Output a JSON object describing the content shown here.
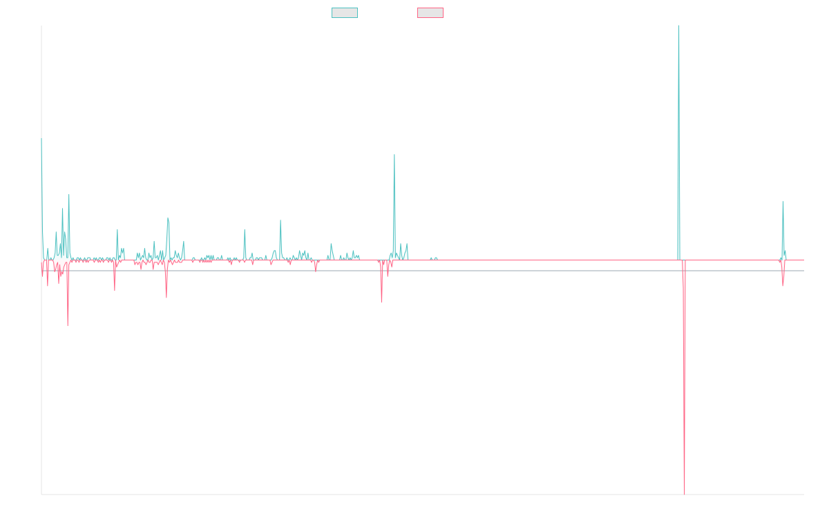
{
  "chart_data": {
    "type": "area",
    "title": "",
    "xlabel": "",
    "ylabel": "",
    "ylim": [
      -100,
      100
    ],
    "grid": false,
    "legend_position": "top-center",
    "series": [
      {
        "color": "#4bc0c0",
        "baseline": 0,
        "values": [
          52,
          12,
          1,
          0,
          0,
          0,
          5,
          0,
          0,
          1,
          0,
          0,
          1,
          3,
          12,
          2,
          2,
          3,
          7,
          1,
          22,
          2,
          12,
          9,
          1,
          1,
          28,
          3,
          1,
          0,
          1,
          0,
          0,
          0,
          1,
          1,
          0,
          1,
          0,
          0,
          0,
          1,
          0,
          0,
          1,
          1,
          1,
          0,
          0,
          0,
          1,
          0,
          1,
          0,
          0,
          1,
          1,
          0,
          1,
          0,
          0,
          0,
          1,
          1,
          0,
          1,
          0,
          0,
          1,
          1,
          0,
          0,
          13,
          0,
          2,
          1,
          5,
          3,
          5,
          0,
          0,
          0,
          0,
          0,
          0,
          0,
          0,
          0,
          0,
          0,
          0,
          3,
          1,
          3,
          0,
          1,
          2,
          1,
          5,
          1,
          0,
          0,
          3,
          1,
          2,
          0,
          1,
          8,
          1,
          1,
          2,
          0,
          2,
          4,
          0,
          4,
          0,
          1,
          2,
          9,
          18,
          16,
          0,
          1,
          0,
          1,
          1,
          4,
          2,
          1,
          3,
          1,
          0,
          1,
          4,
          8,
          0,
          0,
          0,
          0,
          0,
          0,
          0,
          0,
          1,
          1,
          0,
          0,
          0,
          0,
          0,
          0,
          1,
          0,
          0,
          1,
          0,
          2,
          1,
          2,
          0,
          2,
          0,
          2,
          0,
          0,
          0,
          1,
          1,
          0,
          0,
          2,
          0,
          0,
          0,
          0,
          0,
          1,
          0,
          1,
          0,
          0,
          0,
          1,
          0,
          1,
          0,
          0,
          0,
          0,
          0,
          0,
          1,
          13,
          1,
          0,
          0,
          0,
          1,
          1,
          3,
          0,
          0,
          0,
          1,
          1,
          0,
          1,
          1,
          1,
          0,
          0,
          0,
          2,
          0,
          0,
          0,
          0,
          0,
          1,
          3,
          4,
          4,
          1,
          0,
          0,
          0,
          17,
          3,
          1,
          1,
          0,
          0,
          1,
          0,
          0,
          1,
          0,
          0,
          2,
          1,
          0,
          1,
          0,
          1,
          4,
          2,
          0,
          3,
          2,
          4,
          1,
          0,
          3,
          0,
          0,
          1,
          0,
          0,
          0,
          0,
          0,
          0,
          0,
          0,
          0,
          0,
          0,
          0,
          0,
          0,
          0,
          2,
          0,
          0,
          7,
          4,
          2,
          0,
          0,
          0,
          0,
          0,
          0,
          2,
          0,
          0,
          1,
          0,
          0,
          3,
          1,
          0,
          1,
          0,
          1,
          4,
          1,
          1,
          2,
          1,
          2,
          0,
          0,
          0,
          0,
          0,
          0,
          0,
          0,
          0,
          0,
          0,
          0,
          0,
          0,
          0,
          0,
          0,
          0,
          0,
          0,
          0,
          0,
          0,
          0,
          0,
          0,
          0,
          0,
          0,
          2,
          3,
          1,
          4,
          45,
          1,
          3,
          2,
          1,
          0,
          7,
          2,
          0,
          1,
          3,
          4,
          7,
          0,
          0,
          0,
          0,
          0,
          0,
          0,
          0,
          0,
          0,
          0,
          0,
          0,
          0,
          0,
          0,
          0,
          0,
          0,
          0,
          0,
          0,
          1,
          0,
          0,
          0,
          1,
          1,
          0,
          0,
          0,
          0,
          0,
          0,
          0,
          0,
          0,
          0,
          0,
          0,
          0,
          0,
          0,
          0,
          0,
          0,
          0,
          0,
          0,
          0,
          0,
          0,
          0,
          0,
          0,
          0,
          0,
          0,
          0,
          0,
          0,
          0,
          0,
          0,
          0,
          0,
          0,
          0,
          0,
          0,
          0,
          0,
          0,
          0,
          0,
          0,
          0,
          0,
          0,
          0,
          0,
          0,
          0,
          0,
          0,
          0,
          0,
          0,
          0,
          0,
          0,
          0,
          0,
          0,
          0,
          0,
          0,
          0,
          0,
          0,
          0,
          0,
          0,
          0,
          0,
          0,
          0,
          0,
          0,
          0,
          0,
          0,
          0,
          0,
          0,
          0,
          0,
          0,
          0,
          0,
          0,
          0,
          0,
          0,
          0,
          0,
          0,
          0,
          0,
          0,
          0,
          0,
          0,
          0,
          0,
          0,
          0,
          0,
          0,
          0,
          0,
          0,
          0,
          0,
          0,
          0,
          0,
          0,
          0,
          0,
          0,
          0,
          0,
          0,
          0,
          0,
          0,
          0,
          0,
          0,
          0,
          0,
          0,
          0,
          0,
          0,
          0,
          0,
          0,
          0,
          0,
          0,
          0,
          0,
          0,
          0,
          0,
          0,
          0,
          0,
          0,
          0,
          0,
          0,
          0,
          0,
          0,
          0,
          0,
          0,
          0,
          0,
          0,
          0,
          0,
          0,
          0,
          0,
          0,
          0,
          0,
          0,
          0,
          0,
          0,
          0,
          0,
          0,
          0,
          0,
          0,
          0,
          0,
          0,
          0,
          0,
          0,
          0,
          0,
          0,
          0,
          0,
          0,
          0,
          0,
          0,
          0,
          0,
          0,
          0,
          0,
          0,
          0,
          0,
          0,
          0,
          0,
          0,
          0,
          0,
          0,
          0,
          0,
          0,
          0,
          0,
          0,
          0,
          0,
          0,
          0,
          0,
          0,
          0,
          0,
          0,
          0,
          100,
          0,
          0,
          0,
          0,
          0,
          0,
          0,
          0,
          0,
          0,
          0,
          0,
          0,
          0,
          0,
          0,
          0,
          0,
          0,
          0,
          0,
          0,
          0,
          0,
          0,
          0,
          0,
          0,
          0,
          0,
          0,
          0,
          0,
          0,
          0,
          0,
          0,
          0,
          0,
          0,
          0,
          0,
          0,
          0,
          0,
          0,
          0,
          0,
          0,
          0,
          0,
          0,
          0,
          0,
          0,
          0,
          0,
          0,
          0,
          0,
          0,
          0,
          0,
          0,
          0,
          0,
          0,
          0,
          0,
          0,
          0,
          0,
          0,
          0,
          0,
          0,
          0,
          0,
          0,
          0,
          0,
          0,
          0,
          0,
          0,
          0,
          0,
          0,
          0,
          0,
          0,
          0,
          0,
          0,
          0,
          0,
          1,
          0,
          25,
          2,
          4,
          0,
          0,
          0,
          0,
          0,
          0,
          0,
          0,
          0,
          0,
          0,
          0,
          0,
          0,
          0,
          0,
          0,
          0
        ]
      },
      {
        "color": "#ff6384",
        "baseline": 0,
        "values": [
          -1,
          -7,
          -1,
          0,
          0,
          0,
          -11,
          0,
          0,
          0,
          0,
          0,
          -1,
          -5,
          -4,
          -2,
          -1,
          -10,
          -2,
          -7,
          -5,
          -6,
          -3,
          -2,
          -1,
          -1,
          -28,
          -2,
          -1,
          0,
          -1,
          0,
          0,
          0,
          -1,
          0,
          0,
          -1,
          0,
          0,
          0,
          -1,
          0,
          0,
          -1,
          0,
          -1,
          0,
          0,
          0,
          0,
          0,
          -1,
          0,
          0,
          0,
          -1,
          0,
          -1,
          0,
          0,
          -1,
          0,
          0,
          0,
          0,
          -1,
          0,
          0,
          -1,
          0,
          -1,
          -13,
          0,
          -3,
          -2,
          -1,
          0,
          -1,
          0,
          0,
          0,
          0,
          0,
          0,
          0,
          0,
          0,
          0,
          0,
          0,
          0,
          -2,
          -1,
          -1,
          -2,
          -1,
          -1,
          -4,
          -1,
          0,
          -1,
          -1,
          -2,
          -1,
          0,
          -1,
          -1,
          0,
          0,
          -4,
          -1,
          -1,
          -1,
          -1,
          -2,
          -1,
          0,
          -1,
          -2,
          0,
          -1,
          -5,
          -16,
          -4,
          0,
          -1,
          0,
          -1,
          -2,
          -1,
          0,
          -1,
          -1,
          -1,
          0,
          -1,
          -1,
          -1,
          0,
          0,
          0,
          0,
          0,
          0,
          0,
          0,
          0,
          0,
          -1,
          0,
          0,
          0,
          0,
          0,
          0,
          -1,
          0,
          0,
          -1,
          0,
          -1,
          0,
          -1,
          0,
          -1,
          0,
          -1,
          0,
          0,
          0,
          0,
          0,
          0,
          0,
          0,
          0,
          0,
          0,
          0,
          0,
          0,
          0,
          0,
          0,
          -1,
          0,
          -2,
          0,
          0,
          0,
          0,
          0,
          0,
          0,
          -1,
          0,
          0,
          0,
          0,
          -1,
          0,
          0,
          0,
          0,
          0,
          0,
          0,
          -2,
          0,
          0,
          0,
          0,
          0,
          0,
          0,
          0,
          0,
          0,
          0,
          0,
          0,
          0,
          0,
          0,
          0,
          -2,
          -1,
          0,
          0,
          0,
          0,
          0,
          0,
          0,
          0,
          0,
          0,
          0,
          0,
          0,
          0,
          0,
          -1,
          0,
          -2,
          0,
          0,
          0,
          0,
          0,
          0,
          0,
          0,
          0,
          0,
          0,
          0,
          0,
          0,
          0,
          0,
          0,
          0,
          0,
          0,
          -1,
          0,
          0,
          -1,
          -5,
          -2,
          0,
          -1,
          0,
          0,
          0,
          0,
          0,
          0,
          0,
          0,
          0,
          0,
          0,
          0,
          0,
          0,
          0,
          0,
          0,
          0,
          0,
          0,
          0,
          0,
          0,
          0,
          0,
          0,
          0,
          0,
          0,
          0,
          0,
          0,
          0,
          0,
          0,
          0,
          0,
          0,
          0,
          0,
          0,
          0,
          0,
          0,
          0,
          0,
          0,
          0,
          0,
          0,
          0,
          0,
          0,
          0,
          0,
          0,
          0,
          0,
          -1,
          0,
          -3,
          -18,
          0,
          -2,
          0,
          0,
          0,
          -7,
          -2,
          0,
          -1,
          -3,
          0,
          0,
          0,
          0,
          0,
          0,
          0,
          0,
          0,
          0,
          0,
          0,
          0,
          0,
          0,
          0,
          0,
          0,
          0,
          0,
          0,
          0,
          0,
          0,
          0,
          0,
          0,
          0,
          0,
          0,
          0,
          0,
          0,
          0,
          0,
          0,
          0,
          0,
          0,
          0,
          0,
          0,
          0,
          0,
          0,
          0,
          0,
          0,
          0,
          0,
          0,
          0,
          0,
          0,
          0,
          0,
          0,
          0,
          0,
          0,
          0,
          0,
          0,
          0,
          0,
          0,
          0,
          0,
          0,
          0,
          0,
          0,
          0,
          0,
          0,
          0,
          0,
          0,
          0,
          0,
          0,
          0,
          0,
          0,
          0,
          0,
          0,
          0,
          0,
          0,
          0,
          0,
          0,
          0,
          0,
          0,
          0,
          0,
          0,
          0,
          0,
          0,
          0,
          0,
          0,
          0,
          0,
          0,
          0,
          0,
          0,
          0,
          0,
          0,
          0,
          0,
          0,
          0,
          0,
          0,
          0,
          0,
          0,
          0,
          0,
          0,
          0,
          0,
          0,
          0,
          0,
          0,
          0,
          0,
          0,
          0,
          0,
          0,
          0,
          0,
          0,
          0,
          0,
          0,
          0,
          0,
          0,
          0,
          0,
          0,
          0,
          0,
          0,
          0,
          0,
          0,
          0,
          0,
          0,
          0,
          0,
          0,
          0,
          0,
          0,
          0,
          0,
          0,
          0,
          0,
          0,
          0,
          0,
          0,
          0,
          0,
          0,
          0,
          0,
          0,
          0,
          0,
          0,
          0,
          0,
          0,
          0,
          0,
          0,
          0,
          0,
          0,
          0,
          0,
          0,
          0,
          0,
          0,
          0,
          0,
          0,
          0,
          0,
          0,
          0,
          0,
          0,
          0,
          0,
          0,
          0,
          0,
          0,
          0,
          0,
          0,
          0,
          0,
          0,
          0,
          0,
          0,
          0,
          0,
          0,
          0,
          0,
          0,
          0,
          0,
          0,
          0,
          0,
          0,
          0,
          0,
          0,
          0,
          0,
          0,
          0,
          0,
          0,
          0,
          0,
          0,
          0,
          0,
          0,
          0,
          0,
          0,
          0,
          0,
          0,
          0,
          0,
          0,
          0,
          0,
          0,
          0,
          0,
          0,
          0,
          0,
          0,
          0,
          0,
          0,
          0,
          0,
          0,
          0,
          0,
          0,
          0,
          0,
          0,
          0,
          0,
          0,
          0,
          0,
          0,
          0,
          -12,
          -100,
          0,
          0,
          0,
          0,
          0,
          0,
          0,
          0,
          0,
          0,
          0,
          0,
          0,
          0,
          0,
          0,
          0,
          0,
          0,
          0,
          0,
          0,
          0,
          0,
          0,
          0,
          0,
          0,
          0,
          0,
          0,
          0,
          0,
          0,
          0,
          0,
          0,
          0,
          0,
          0,
          0,
          0,
          0,
          0,
          0,
          0,
          0,
          0,
          0,
          0,
          0,
          0,
          0,
          0,
          0,
          0,
          0,
          0,
          0,
          0,
          0,
          0,
          0,
          0,
          0,
          0,
          0,
          0,
          0,
          0,
          0,
          0,
          0,
          0,
          0,
          0,
          0,
          0,
          0,
          0,
          0,
          0,
          0,
          0,
          0,
          0,
          0,
          0,
          0,
          0,
          0,
          0,
          0,
          -1,
          0,
          -3,
          -11,
          -7,
          0,
          0,
          0,
          0,
          0,
          0,
          0,
          0,
          0,
          0,
          0,
          0,
          0,
          0,
          0,
          0,
          0,
          0,
          0,
          0
        ]
      }
    ]
  }
}
